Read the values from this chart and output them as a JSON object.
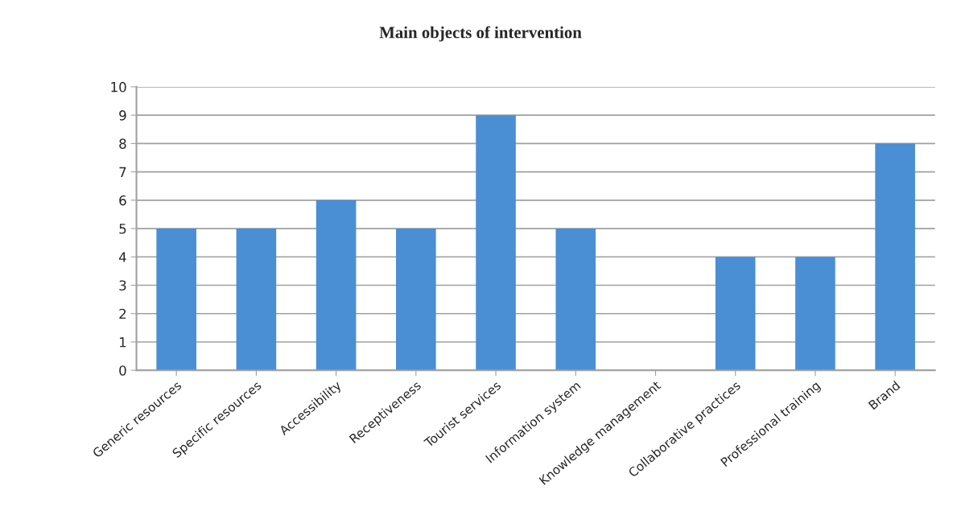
{
  "chart_data": {
    "type": "bar",
    "title": "Main objects of intervention",
    "categories": [
      "Generic resources",
      "Specific resources",
      "Accessibility",
      "Receptiveness",
      "Tourist services",
      "Information system",
      "Knowledge management",
      "Collaborative practices",
      "Professional training",
      "Brand"
    ],
    "values": [
      5,
      5,
      6,
      5,
      9,
      5,
      0,
      4,
      4,
      8
    ],
    "color": "#4a8fd4",
    "ylim": [
      0,
      10
    ],
    "yticks": [
      0,
      1,
      2,
      3,
      4,
      5,
      6,
      7,
      8,
      9,
      10
    ],
    "grid": "y"
  }
}
